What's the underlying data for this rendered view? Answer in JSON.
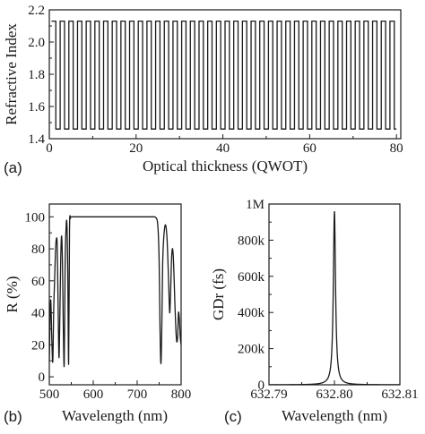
{
  "chart_data": [
    {
      "type": "line",
      "panel_label": "(a)",
      "xlabel": "Optical thickness (QWOT)",
      "ylabel": "Refractive Index",
      "xlim": [
        0,
        81
      ],
      "ylim": [
        1.4,
        2.2
      ],
      "xticks": [
        0,
        20,
        40,
        60,
        80
      ],
      "xtick_labels": [
        "0",
        "20",
        "40",
        "60",
        "80"
      ],
      "yticks": [
        1.4,
        1.6,
        1.8,
        2.0,
        2.2
      ],
      "ytick_labels": [
        "1.4",
        "1.6",
        "1.8",
        "2.0",
        "2.2"
      ],
      "n_high": 2.13,
      "n_low": 1.46,
      "layers_start": 0.5,
      "layers_end": 80,
      "layer_thickness_qwot": 1,
      "grid": false,
      "legend": "none"
    },
    {
      "type": "line",
      "panel_label": "(b)",
      "xlabel": "Wavelength (nm)",
      "ylabel": "R (%)",
      "xlim": [
        500,
        800
      ],
      "ylim": [
        -5,
        108
      ],
      "xticks": [
        500,
        600,
        700,
        800
      ],
      "xtick_labels": [
        "500",
        "600",
        "700",
        "800"
      ],
      "yticks": [
        0,
        20,
        40,
        60,
        80,
        100
      ],
      "ytick_labels": [
        "0",
        "20",
        "40",
        "60",
        "80",
        "100"
      ],
      "series": [
        {
          "x": [
            500,
            503,
            506,
            508,
            510,
            512,
            514,
            516,
            518,
            520,
            522,
            524,
            526,
            528,
            530,
            532,
            534,
            536,
            538,
            540,
            542,
            544,
            546,
            548,
            550,
            560,
            600,
            650,
            700,
            735,
            740,
            742,
            744,
            746,
            748,
            750,
            752,
            754,
            756,
            758,
            760,
            762,
            764,
            766,
            768,
            770,
            772,
            774,
            776,
            778,
            780,
            782,
            784,
            786,
            788,
            790,
            792,
            794,
            796,
            798,
            800
          ],
          "y": [
            10,
            48,
            20,
            10,
            42,
            60,
            78,
            86,
            82,
            45,
            12,
            38,
            74,
            88,
            70,
            28,
            8,
            70,
            92,
            96,
            66,
            8,
            92,
            99,
            100,
            100,
            100,
            100,
            100,
            100,
            100,
            99.5,
            99,
            97,
            90,
            72,
            30,
            8,
            30,
            70,
            85,
            92,
            95,
            93,
            86,
            72,
            55,
            40,
            52,
            72,
            80,
            76,
            62,
            44,
            30,
            22,
            25,
            40,
            36,
            25,
            20
          ]
        }
      ],
      "grid": false,
      "legend": "none"
    },
    {
      "type": "line",
      "panel_label": "(c)",
      "xlabel": "Wavelength (nm)",
      "ylabel": "GDr (fs)",
      "xlim": [
        632.79,
        632.81
      ],
      "ylim": [
        0,
        1000000
      ],
      "xticks": [
        632.79,
        632.8,
        632.81
      ],
      "xtick_labels": [
        "632.79",
        "632.80",
        "632.81"
      ],
      "yticks": [
        0,
        200000,
        400000,
        600000,
        800000,
        1000000
      ],
      "ytick_labels": [
        "0",
        "200k",
        "400k",
        "600k",
        "800k",
        "1M"
      ],
      "series": [
        {
          "peak_x": 632.8,
          "peak_y": 960000,
          "half_width_nm": 0.0002
        }
      ],
      "grid": false,
      "legend": "none"
    }
  ]
}
